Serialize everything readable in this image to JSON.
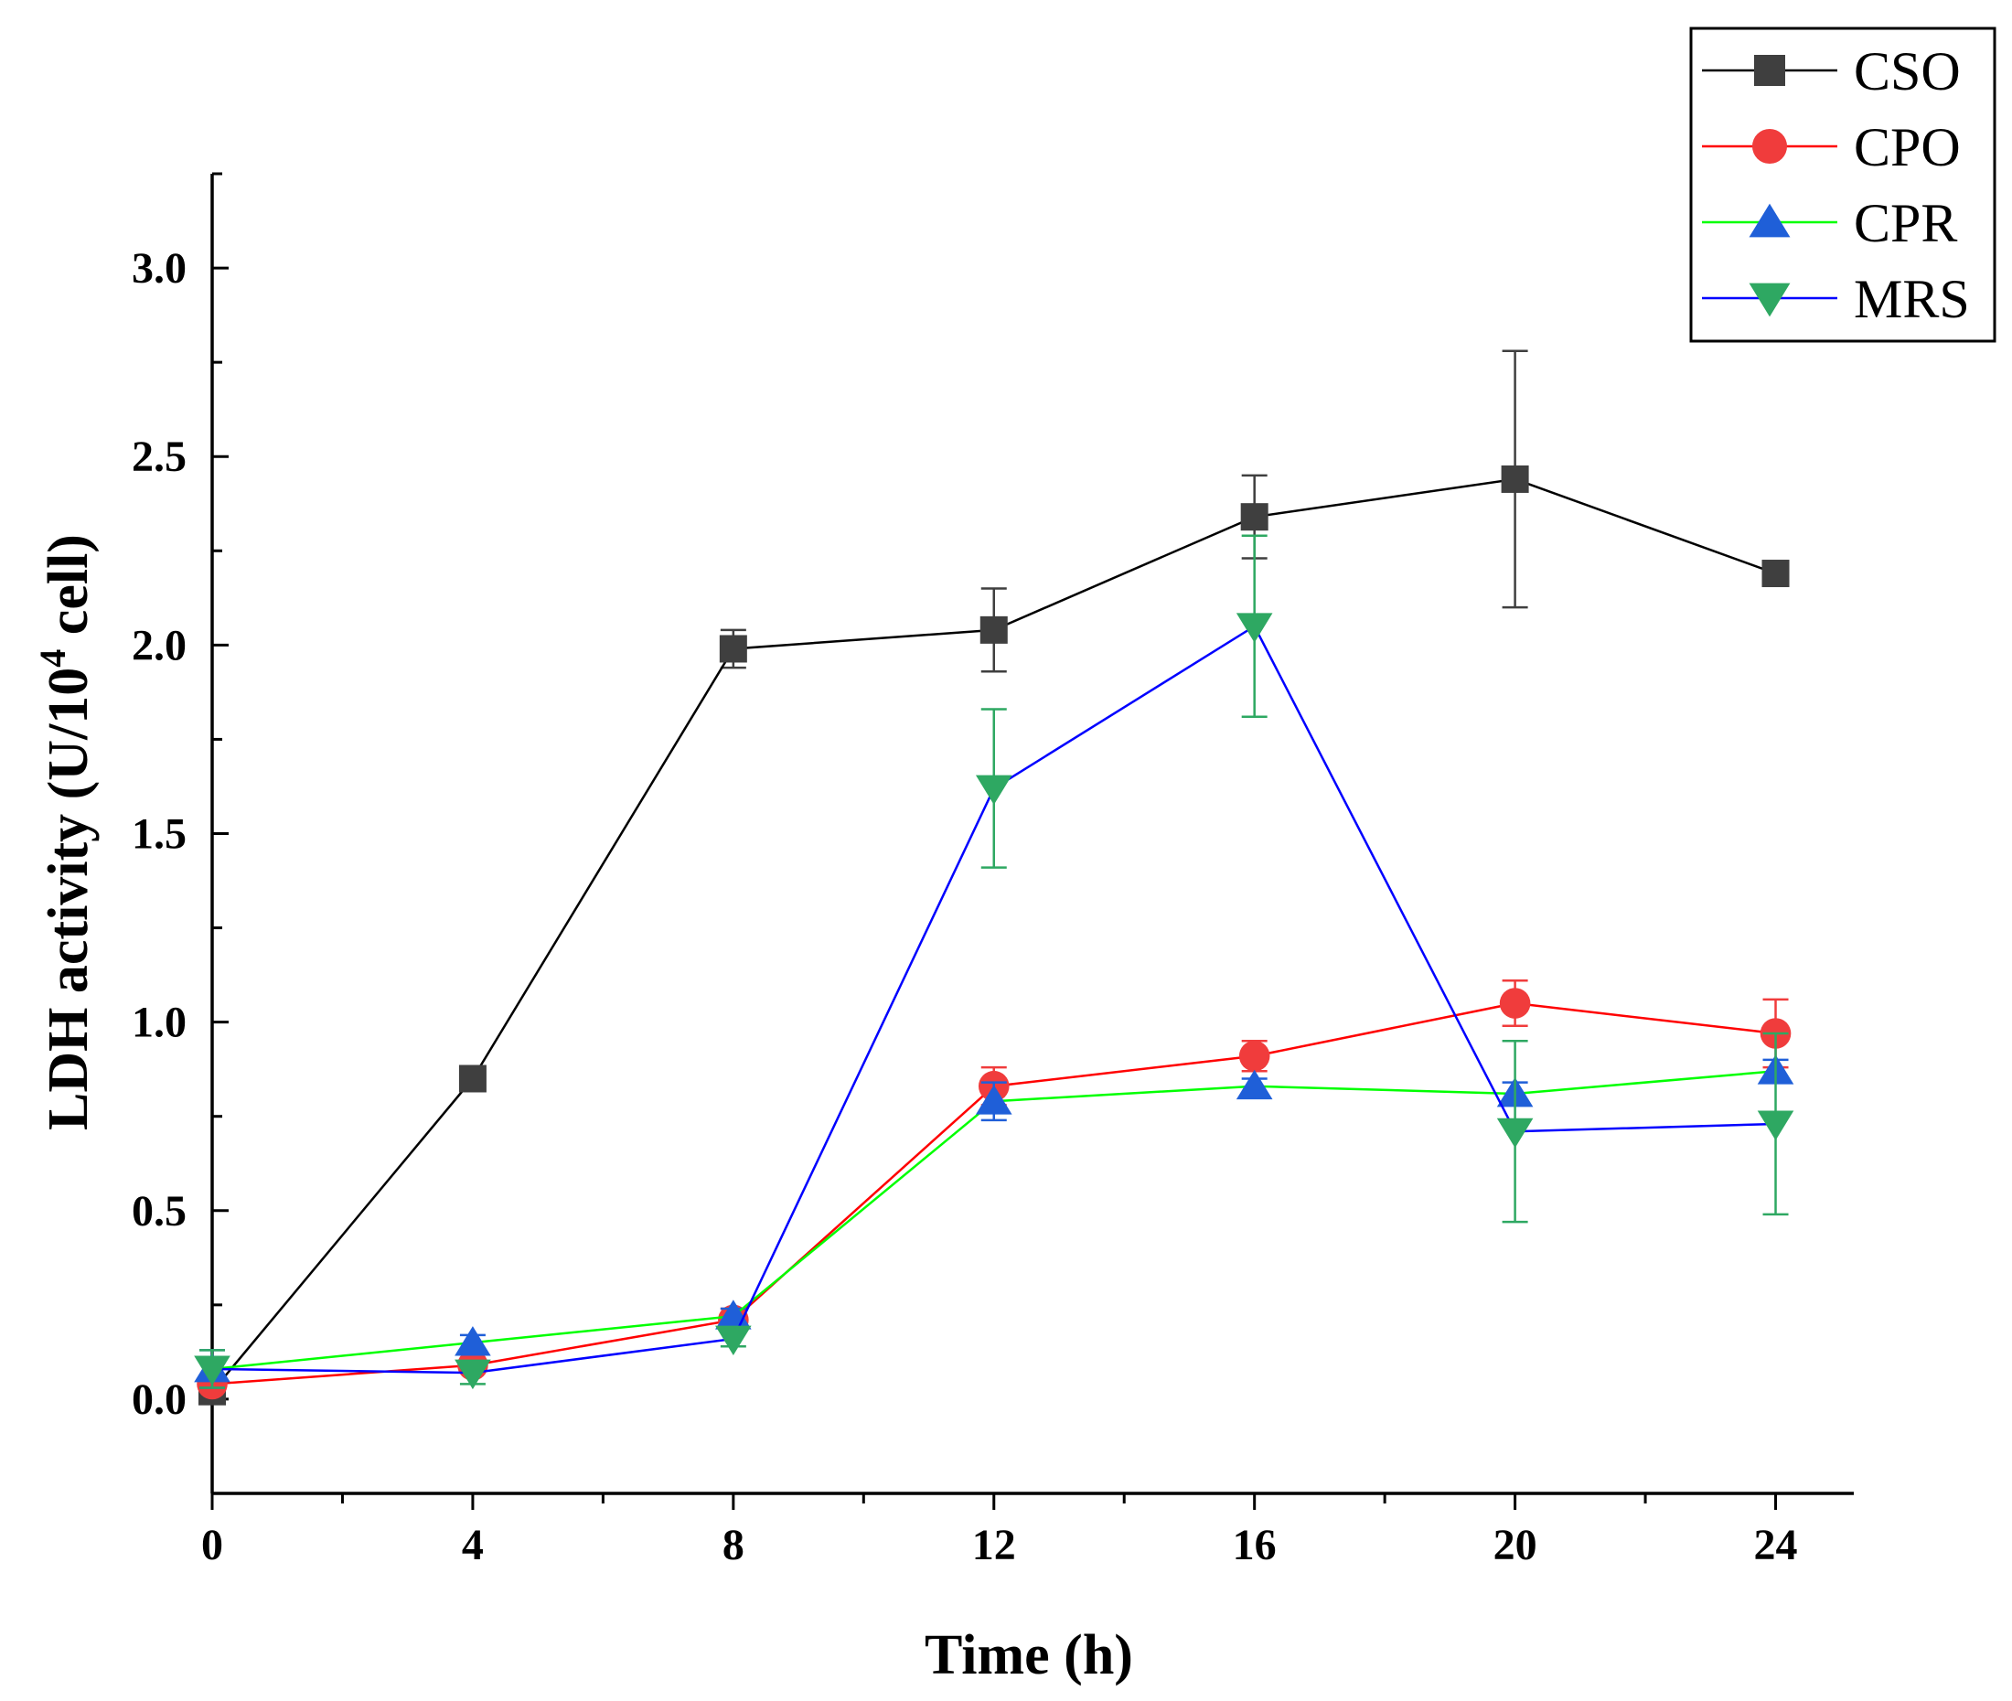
{
  "chart_data": {
    "type": "line",
    "title": "",
    "xlabel": "Time (h)",
    "ylabel_main": "LDH activity (U/10",
    "ylabel_sup": "4",
    "ylabel_end": " cell)",
    "x": [
      0,
      4,
      8,
      12,
      16,
      20,
      24
    ],
    "x_ticks": [
      "0",
      "4",
      "8",
      "12",
      "16",
      "20",
      "24"
    ],
    "y_ticks": [
      "0.0",
      "0.5",
      "1.0",
      "1.5",
      "2.0",
      "2.5",
      "3.0"
    ],
    "xlim": [
      0,
      25.2
    ],
    "ylim": [
      -0.25,
      3.25
    ],
    "legend_position": "top-right",
    "series": [
      {
        "name": "CSO",
        "marker": "square",
        "line_color": "#000000",
        "marker_color": "#3f3f3f",
        "values": [
          0.02,
          0.85,
          1.99,
          2.04,
          2.34,
          2.44,
          2.19
        ],
        "errors": [
          0.02,
          0.02,
          0.05,
          0.11,
          0.11,
          0.34,
          0.02
        ]
      },
      {
        "name": "CPO",
        "marker": "circle",
        "line_color": "#ff0000",
        "marker_color": "#f03c3c",
        "values": [
          0.04,
          0.09,
          0.21,
          0.83,
          0.91,
          1.05,
          0.97
        ],
        "errors": [
          0.02,
          0.02,
          0.03,
          0.05,
          0.04,
          0.06,
          0.09
        ]
      },
      {
        "name": "CPR",
        "marker": "triangle-up",
        "line_color": "#00ff00",
        "marker_color": "#1f5fd8",
        "values": [
          0.08,
          0.15,
          0.22,
          0.79,
          0.83,
          0.81,
          0.87
        ],
        "errors": [
          0.05,
          0.02,
          0.02,
          0.05,
          0.02,
          0.03,
          0.03
        ]
      },
      {
        "name": "MRS",
        "marker": "triangle-down",
        "line_color": "#0000ff",
        "marker_color": "#2ea862",
        "values": [
          0.08,
          0.07,
          0.16,
          1.62,
          2.05,
          0.71,
          0.73
        ],
        "errors": [
          0.05,
          0.03,
          0.02,
          0.21,
          0.24,
          0.24,
          0.24
        ]
      }
    ]
  }
}
